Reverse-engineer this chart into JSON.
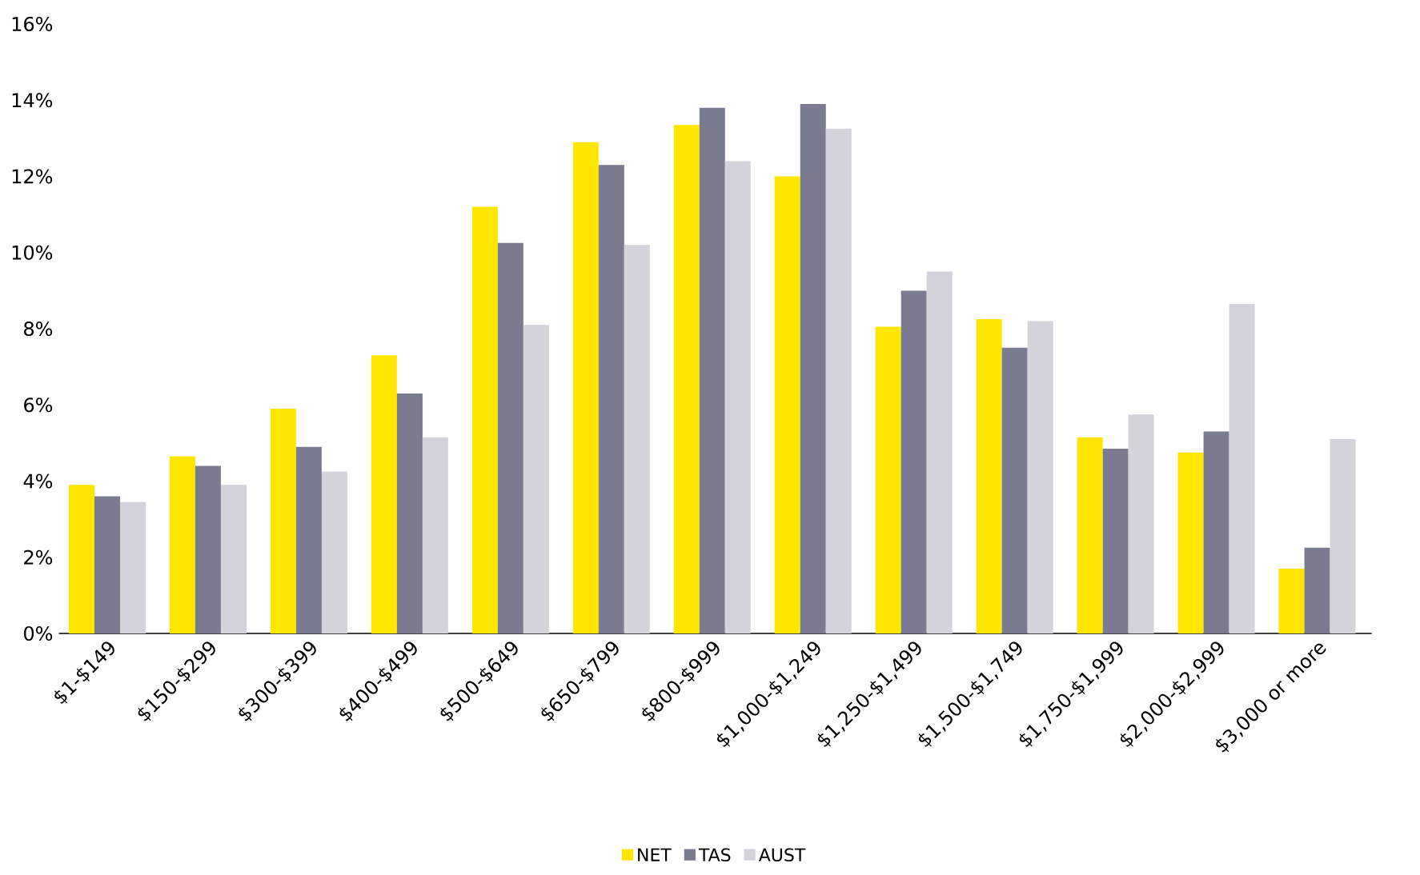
{
  "chart_data": {
    "type": "bar",
    "categories": [
      "$1-$149",
      "$150-$299",
      "$300-$399",
      "$400-$499",
      "$500-$649",
      "$650-$799",
      "$800-$999",
      "$1,000-$1,249",
      "$1,250-$1,499",
      "$1,500-$1,749",
      "$1,750-$1,999",
      "$2,000-$2,999",
      "$3,000 or more"
    ],
    "series": [
      {
        "name": "NET",
        "color": "#ffe600",
        "values": [
          3.9,
          4.65,
          5.9,
          7.3,
          11.2,
          12.9,
          13.35,
          12.0,
          8.05,
          8.25,
          5.15,
          4.75,
          1.7
        ]
      },
      {
        "name": "TAS",
        "color": "#7a7a91",
        "values": [
          3.6,
          4.4,
          4.9,
          6.3,
          10.25,
          12.3,
          13.8,
          13.9,
          9.0,
          7.5,
          4.85,
          5.3,
          2.25
        ]
      },
      {
        "name": "AUST",
        "color": "#d3d3db",
        "values": [
          3.45,
          3.9,
          4.25,
          5.15,
          8.1,
          10.2,
          12.4,
          13.25,
          9.5,
          8.2,
          5.75,
          8.65,
          5.1
        ]
      }
    ],
    "ylim": [
      0,
      16
    ],
    "yticks": [
      {
        "value": 0,
        "label": "0%"
      },
      {
        "value": 2,
        "label": "2%"
      },
      {
        "value": 4,
        "label": "4%"
      },
      {
        "value": 6,
        "label": "6%"
      },
      {
        "value": 8,
        "label": "8%"
      },
      {
        "value": 10,
        "label": "10%"
      },
      {
        "value": 12,
        "label": "12%"
      },
      {
        "value": 14,
        "label": "14%"
      },
      {
        "value": 16,
        "label": "16%"
      }
    ],
    "legend": "bottom"
  }
}
